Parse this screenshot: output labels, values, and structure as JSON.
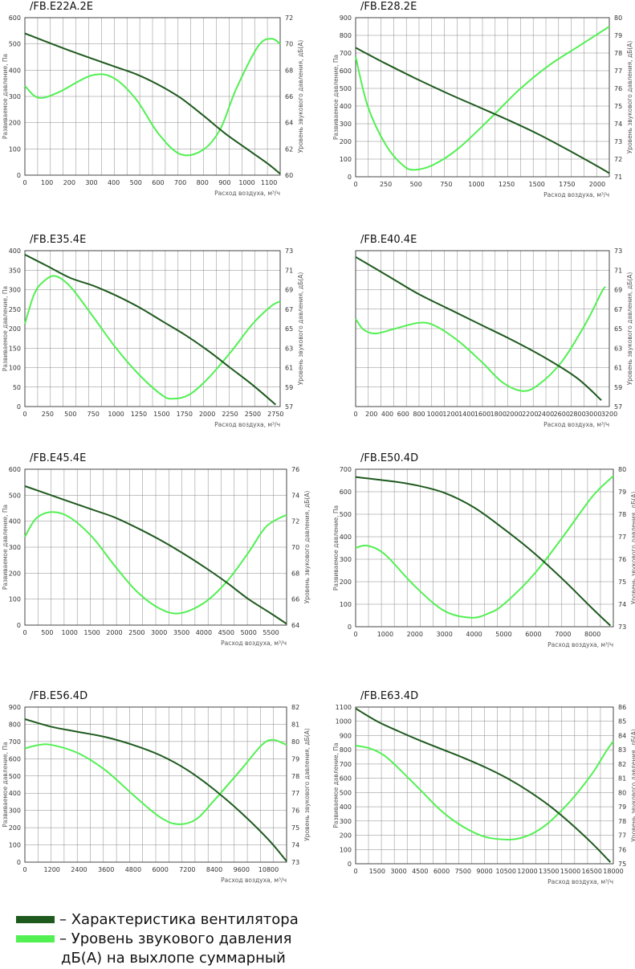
{
  "colors": {
    "fan": "#1e5a1e",
    "sound": "#52f052",
    "grid": "#4a4a4a"
  },
  "charts": [
    {
      "title": "/FB.E22A.2E",
      "xlabel": "Расход воздуха, м³/ч",
      "ylabel_left": "Развиваемое давление, Па",
      "ylabel_right": "Уровень звукового давления, дБ(А)",
      "xticks": [
        0,
        100,
        200,
        300,
        400,
        500,
        600,
        700,
        800,
        900,
        1000,
        1100
      ],
      "xlim": [
        0,
        1150
      ],
      "yticks_left": [
        0,
        100,
        200,
        300,
        400,
        500,
        600
      ],
      "ylim_left": [
        0,
        600
      ],
      "yticks_right": [
        60,
        62,
        64,
        66,
        68,
        70,
        72
      ],
      "ylim_right": [
        60,
        72
      ],
      "fan": [
        [
          0,
          540
        ],
        [
          200,
          475
        ],
        [
          400,
          415
        ],
        [
          500,
          385
        ],
        [
          600,
          345
        ],
        [
          700,
          295
        ],
        [
          800,
          230
        ],
        [
          900,
          160
        ],
        [
          1000,
          100
        ],
        [
          1100,
          40
        ],
        [
          1150,
          5
        ]
      ],
      "sound": [
        [
          0,
          66.8
        ],
        [
          60,
          65.9
        ],
        [
          150,
          66.3
        ],
        [
          300,
          67.6
        ],
        [
          400,
          67.4
        ],
        [
          500,
          65.8
        ],
        [
          600,
          63.2
        ],
        [
          700,
          61.6
        ],
        [
          800,
          61.9
        ],
        [
          880,
          63.5
        ],
        [
          950,
          66.5
        ],
        [
          1050,
          69.8
        ],
        [
          1110,
          70.4
        ],
        [
          1150,
          70.0
        ]
      ]
    },
    {
      "title": "/FB.E28.2E",
      "xlabel": "Расход воздуха, м³/ч",
      "ylabel_left": "Развиваемое давление, Па",
      "ylabel_right": "Уровень звукового давления, дБ(А)",
      "xticks": [
        0,
        250,
        500,
        750,
        1000,
        1250,
        1500,
        1750,
        2000
      ],
      "xlim": [
        0,
        2100
      ],
      "yticks_left": [
        0,
        100,
        200,
        300,
        400,
        500,
        600,
        700,
        800,
        900
      ],
      "ylim_left": [
        0,
        900
      ],
      "yticks_right": [
        71,
        72,
        73,
        74,
        75,
        76,
        77,
        78,
        79,
        80
      ],
      "ylim_right": [
        71,
        80
      ],
      "fan": [
        [
          0,
          730
        ],
        [
          250,
          640
        ],
        [
          500,
          555
        ],
        [
          750,
          475
        ],
        [
          1000,
          400
        ],
        [
          1250,
          325
        ],
        [
          1500,
          245
        ],
        [
          1750,
          155
        ],
        [
          2000,
          60
        ],
        [
          2100,
          20
        ]
      ],
      "sound": [
        [
          0,
          77.8
        ],
        [
          100,
          75.0
        ],
        [
          250,
          72.8
        ],
        [
          400,
          71.6
        ],
        [
          500,
          71.4
        ],
        [
          650,
          71.7
        ],
        [
          850,
          72.6
        ],
        [
          1100,
          74.2
        ],
        [
          1350,
          75.9
        ],
        [
          1600,
          77.3
        ],
        [
          1850,
          78.4
        ],
        [
          2100,
          79.5
        ]
      ]
    },
    {
      "title": "/FB.E35.4E",
      "xlabel": "Расход воздуха, м³/ч",
      "ylabel_left": "Развиваемое давление, Па",
      "ylabel_right": "Уровень звукового давления, дБ(А)",
      "xticks": [
        0,
        250,
        500,
        750,
        1000,
        1250,
        1500,
        1750,
        2000,
        2250,
        2500,
        2750
      ],
      "xlim": [
        0,
        2800
      ],
      "yticks_left": [
        0,
        50,
        100,
        150,
        200,
        250,
        300,
        350,
        400
      ],
      "ylim_left": [
        0,
        400
      ],
      "yticks_right": [
        57,
        59,
        61,
        63,
        65,
        67,
        69,
        71,
        73
      ],
      "ylim_right": [
        57,
        73
      ],
      "fan": [
        [
          0,
          390
        ],
        [
          250,
          360
        ],
        [
          500,
          330
        ],
        [
          750,
          310
        ],
        [
          1000,
          285
        ],
        [
          1250,
          255
        ],
        [
          1500,
          220
        ],
        [
          1750,
          185
        ],
        [
          2000,
          145
        ],
        [
          2250,
          100
        ],
        [
          2500,
          55
        ],
        [
          2750,
          5
        ]
      ],
      "sound": [
        [
          0,
          65.5
        ],
        [
          100,
          68.5
        ],
        [
          200,
          69.8
        ],
        [
          330,
          70.4
        ],
        [
          500,
          69.3
        ],
        [
          750,
          66.2
        ],
        [
          1000,
          63.0
        ],
        [
          1250,
          60.3
        ],
        [
          1500,
          58.2
        ],
        [
          1620,
          57.8
        ],
        [
          1800,
          58.2
        ],
        [
          2000,
          59.8
        ],
        [
          2250,
          62.5
        ],
        [
          2500,
          65.5
        ],
        [
          2700,
          67.3
        ],
        [
          2800,
          67.8
        ]
      ]
    },
    {
      "title": "/FB.E40.4E",
      "xlabel": "Расход воздуха, м³/ч",
      "ylabel_left": "",
      "ylabel_right": "Уровень звукового давления, дБ(А)",
      "xticks": [
        0,
        200,
        400,
        600,
        800,
        1000,
        1200,
        1400,
        1600,
        1800,
        2000,
        2200,
        2400,
        2600,
        2800,
        3000,
        3200
      ],
      "xlim": [
        0,
        3200
      ],
      "yticks_left": [],
      "ylim_left": [
        0,
        1
      ],
      "yticks_right": [
        57,
        59,
        61,
        63,
        65,
        67,
        69,
        71,
        73
      ],
      "ylim_right": [
        57,
        73
      ],
      "fan": [
        [
          0,
          0.96
        ],
        [
          400,
          0.84
        ],
        [
          800,
          0.72
        ],
        [
          1200,
          0.62
        ],
        [
          1600,
          0.52
        ],
        [
          2000,
          0.42
        ],
        [
          2400,
          0.31
        ],
        [
          2800,
          0.18
        ],
        [
          3100,
          0.04
        ]
      ],
      "sound": [
        [
          0,
          66.0
        ],
        [
          100,
          64.9
        ],
        [
          250,
          64.5
        ],
        [
          500,
          65.0
        ],
        [
          800,
          65.6
        ],
        [
          1000,
          65.3
        ],
        [
          1300,
          63.7
        ],
        [
          1600,
          61.5
        ],
        [
          1850,
          59.5
        ],
        [
          2100,
          58.6
        ],
        [
          2300,
          59.2
        ],
        [
          2600,
          61.6
        ],
        [
          2900,
          65.5
        ],
        [
          3100,
          68.7
        ],
        [
          3150,
          69.3
        ]
      ]
    },
    {
      "title": "/FB.E45.4E",
      "xlabel": "Расход воздуха, м³/ч",
      "ylabel_left": "Развиваемое давление, Па",
      "ylabel_right": "Уровень звукового давления, дБ(А)",
      "xticks": [
        0,
        500,
        1000,
        1500,
        2000,
        2500,
        3000,
        3500,
        4000,
        4500,
        5000,
        5500
      ],
      "xlim": [
        0,
        5850
      ],
      "yticks_left": [
        0,
        100,
        200,
        300,
        400,
        500,
        600
      ],
      "ylim_left": [
        0,
        600
      ],
      "yticks_right": [
        64,
        66,
        68,
        70,
        72,
        74,
        76
      ],
      "ylim_right": [
        64,
        76
      ],
      "fan": [
        [
          0,
          535
        ],
        [
          500,
          505
        ],
        [
          1000,
          475
        ],
        [
          1500,
          445
        ],
        [
          2000,
          415
        ],
        [
          2500,
          375
        ],
        [
          3000,
          330
        ],
        [
          3500,
          280
        ],
        [
          4000,
          225
        ],
        [
          4500,
          165
        ],
        [
          5000,
          100
        ],
        [
          5500,
          45
        ],
        [
          5850,
          5
        ]
      ],
      "sound": [
        [
          0,
          70.8
        ],
        [
          250,
          72.2
        ],
        [
          600,
          72.7
        ],
        [
          1000,
          72.3
        ],
        [
          1500,
          70.8
        ],
        [
          2000,
          68.6
        ],
        [
          2500,
          66.6
        ],
        [
          3000,
          65.3
        ],
        [
          3450,
          64.9
        ],
        [
          4000,
          65.7
        ],
        [
          4500,
          67.3
        ],
        [
          5000,
          69.6
        ],
        [
          5400,
          71.6
        ],
        [
          5850,
          72.5
        ]
      ]
    },
    {
      "title": "/FB.E50.4D",
      "xlabel": "Расход воздуха, м³/ч",
      "ylabel_left": "Развиваемое давление, Па",
      "ylabel_right": "Уровень звукового давления, дБ(А)",
      "xticks": [
        0,
        1000,
        2000,
        3000,
        4000,
        5000,
        6000,
        7000,
        8000
      ],
      "xlim": [
        0,
        8700
      ],
      "yticks_left": [
        0,
        100,
        200,
        300,
        400,
        500,
        600,
        700
      ],
      "ylim_left": [
        0,
        700
      ],
      "yticks_right": [
        73,
        74,
        75,
        76,
        77,
        78,
        79,
        80
      ],
      "ylim_right": [
        73,
        80
      ],
      "fan": [
        [
          0,
          665
        ],
        [
          1000,
          650
        ],
        [
          2000,
          630
        ],
        [
          3000,
          595
        ],
        [
          4000,
          530
        ],
        [
          5000,
          435
        ],
        [
          6000,
          330
        ],
        [
          7000,
          210
        ],
        [
          8000,
          80
        ],
        [
          8600,
          5
        ]
      ],
      "sound": [
        [
          0,
          76.5
        ],
        [
          400,
          76.6
        ],
        [
          1000,
          76.2
        ],
        [
          2000,
          74.8
        ],
        [
          3000,
          73.7
        ],
        [
          3900,
          73.4
        ],
        [
          4500,
          73.6
        ],
        [
          5000,
          74.0
        ],
        [
          6000,
          75.3
        ],
        [
          7000,
          77.0
        ],
        [
          8000,
          78.8
        ],
        [
          8700,
          79.7
        ]
      ]
    },
    {
      "title": "/FB.E56.4D",
      "xlabel": "Расход воздуха, м³/ч",
      "ylabel_left": "Развиваемое давление, Па",
      "ylabel_right": "Уровень звукового давления, дБ(А)",
      "xticks": [
        0,
        1200,
        2400,
        3600,
        4800,
        6000,
        7200,
        8400,
        9600,
        10800
      ],
      "xlim": [
        0,
        11600
      ],
      "yticks_left": [
        0,
        100,
        200,
        300,
        400,
        500,
        600,
        700,
        800,
        900
      ],
      "ylim_left": [
        0,
        900
      ],
      "yticks_right": [
        73,
        74,
        75,
        76,
        77,
        78,
        79,
        80,
        81,
        82
      ],
      "ylim_right": [
        73,
        82
      ],
      "fan": [
        [
          0,
          830
        ],
        [
          1200,
          785
        ],
        [
          2400,
          755
        ],
        [
          3600,
          725
        ],
        [
          4800,
          680
        ],
        [
          6000,
          620
        ],
        [
          7200,
          535
        ],
        [
          8400,
          420
        ],
        [
          9600,
          285
        ],
        [
          10800,
          130
        ],
        [
          11600,
          5
        ]
      ],
      "sound": [
        [
          0,
          79.6
        ],
        [
          600,
          79.8
        ],
        [
          1200,
          79.8
        ],
        [
          2400,
          79.3
        ],
        [
          3600,
          78.3
        ],
        [
          4800,
          76.9
        ],
        [
          6000,
          75.6
        ],
        [
          6800,
          75.2
        ],
        [
          7600,
          75.5
        ],
        [
          8400,
          76.6
        ],
        [
          9600,
          78.4
        ],
        [
          10500,
          79.8
        ],
        [
          11000,
          80.1
        ],
        [
          11600,
          79.8
        ]
      ]
    },
    {
      "title": "/FB.E63.4D",
      "xlabel": "Расход воздуха, м³/ч",
      "ylabel_left": "Развиваемое давление, Па",
      "ylabel_right": "Уровень звукового давления, дБ(А)",
      "xticks": [
        0,
        1500,
        3000,
        4500,
        6000,
        7500,
        9000,
        10500,
        12000,
        13500,
        15000,
        16500,
        18000
      ],
      "xlim": [
        0,
        18000
      ],
      "yticks_left": [
        0,
        100,
        200,
        300,
        400,
        500,
        600,
        700,
        800,
        900,
        1000,
        1100
      ],
      "ylim_left": [
        0,
        1100
      ],
      "yticks_right": [
        75,
        76,
        77,
        78,
        79,
        80,
        81,
        82,
        83,
        84,
        85,
        86
      ],
      "ylim_right": [
        75,
        86
      ],
      "fan": [
        [
          0,
          1090
        ],
        [
          1500,
          1000
        ],
        [
          3000,
          930
        ],
        [
          4500,
          865
        ],
        [
          6000,
          805
        ],
        [
          7500,
          745
        ],
        [
          9000,
          680
        ],
        [
          10500,
          605
        ],
        [
          12000,
          515
        ],
        [
          13500,
          410
        ],
        [
          15000,
          285
        ],
        [
          16500,
          145
        ],
        [
          17800,
          10
        ]
      ],
      "sound": [
        [
          0,
          83.3
        ],
        [
          1000,
          83.1
        ],
        [
          2000,
          82.6
        ],
        [
          3000,
          81.7
        ],
        [
          4500,
          80.2
        ],
        [
          6000,
          78.7
        ],
        [
          7500,
          77.6
        ],
        [
          9000,
          76.9
        ],
        [
          10500,
          76.7
        ],
        [
          11500,
          76.8
        ],
        [
          12500,
          77.2
        ],
        [
          13500,
          77.9
        ],
        [
          15000,
          79.4
        ],
        [
          16500,
          81.3
        ],
        [
          17500,
          82.9
        ],
        [
          18000,
          83.6
        ]
      ]
    }
  ],
  "legend": {
    "fan_label": "– Характеристика вентилятора",
    "sound_label_line1": "– Уровень звукового давления",
    "sound_label_line2": "дБ(А) на выхлопе суммарный"
  }
}
